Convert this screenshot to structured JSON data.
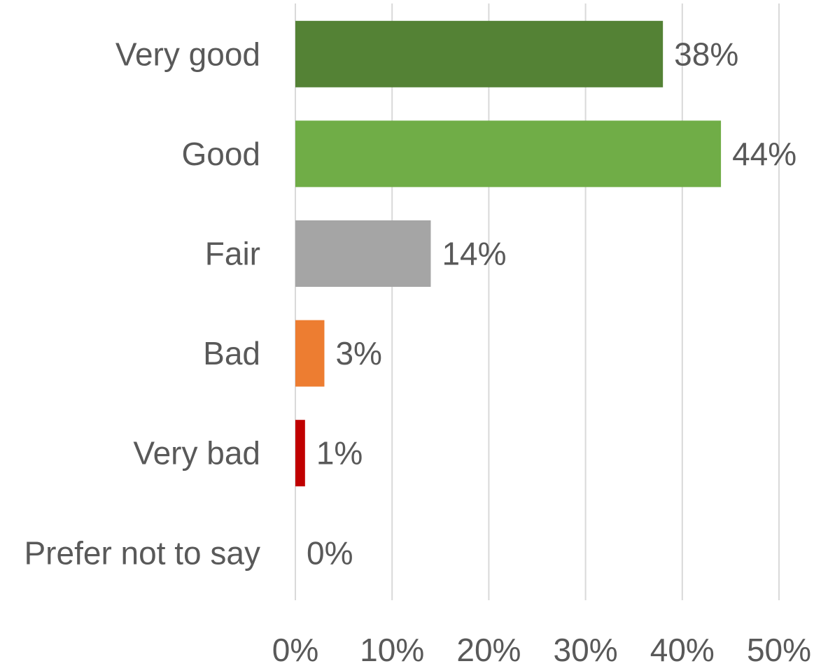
{
  "chart_data": {
    "type": "bar",
    "orientation": "horizontal",
    "categories": [
      "Very good",
      "Good",
      "Fair",
      "Bad",
      "Very bad",
      "Prefer not to say"
    ],
    "values": [
      38,
      44,
      14,
      3,
      1,
      0
    ],
    "data_labels": [
      "38%",
      "44%",
      "14%",
      "3%",
      "1%",
      "0%"
    ],
    "bar_colors": [
      "#548235",
      "#70AD47",
      "#A5A5A5",
      "#ED7D31",
      "#C00000",
      "#FFFFFF"
    ],
    "xlim": [
      0,
      50
    ],
    "x_ticks": [
      0,
      10,
      20,
      30,
      40,
      50
    ],
    "x_tick_labels": [
      "0%",
      "10%",
      "20%",
      "30%",
      "40%",
      "50%"
    ],
    "grid": "vertical",
    "grid_color": "#D9D9D9",
    "text_color": "#595959",
    "legend": "none",
    "title": "",
    "xlabel": "",
    "ylabel": ""
  }
}
